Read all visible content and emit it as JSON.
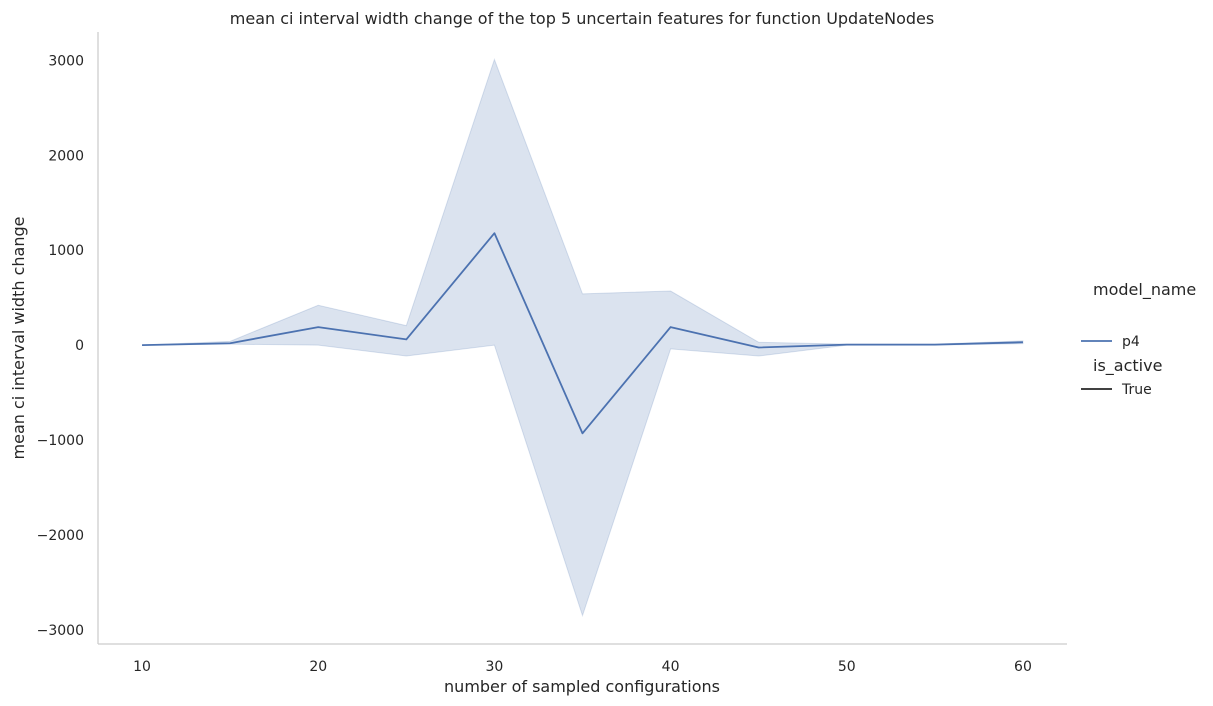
{
  "chart_data": {
    "type": "line",
    "title": "mean ci interval width change of the top 5 uncertain features for function UpdateNodes",
    "xlabel": "number of sampled configurations",
    "ylabel": "mean ci interval width change",
    "xlim": [
      7.5,
      62.5
    ],
    "ylim": [
      -3150,
      3300
    ],
    "xticks": [
      10,
      20,
      30,
      40,
      50,
      60
    ],
    "xtick_labels": [
      "10",
      "20",
      "30",
      "40",
      "50",
      "60"
    ],
    "yticks": [
      -3000,
      -2000,
      -1000,
      0,
      1000,
      2000,
      3000
    ],
    "ytick_labels": [
      "−3000",
      "−2000",
      "−1000",
      "0",
      "1000",
      "2000",
      "3000"
    ],
    "grid": false,
    "legend": {
      "placement": "right",
      "hue_title": "model_name",
      "hue_entries": [
        {
          "label": "p4",
          "color": "#4c72b0"
        }
      ],
      "style_title": "is_active",
      "style_entries": [
        {
          "label": "True",
          "color": "#262626"
        }
      ]
    },
    "series": [
      {
        "name": "p4",
        "color": "#4c72b0",
        "x": [
          10,
          15,
          20,
          25,
          30,
          35,
          40,
          45,
          50,
          55,
          60
        ],
        "y": [
          0,
          20,
          190,
          60,
          1180,
          -930,
          190,
          -25,
          5,
          5,
          30
        ],
        "ci_lower": [
          0,
          10,
          0,
          -115,
          0,
          -2850,
          -40,
          -115,
          0,
          0,
          15
        ],
        "ci_upper": [
          0,
          40,
          420,
          205,
          3010,
          540,
          570,
          30,
          10,
          10,
          45
        ]
      }
    ]
  }
}
